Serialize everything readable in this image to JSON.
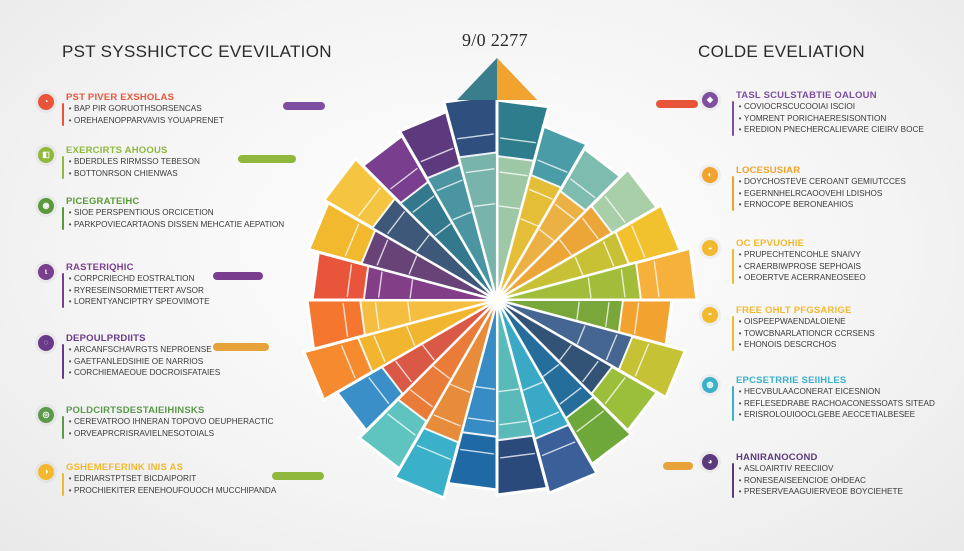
{
  "header": {
    "left_title": "PST SYSSHICTCC EVEVILATION",
    "center_title": "9/0 2277",
    "right_title": "COLDE  EVELIATION"
  },
  "left_items": [
    {
      "head": "PST PIVER EXSHOLAS",
      "lines": [
        "BAP PIR GORUOTHSORSENCAS",
        "OREHAENOPPARVAVIS YOUAPRENET"
      ],
      "color": "#e8553b",
      "tag": "",
      "tag_color": "#7e4fa0",
      "icon": "◔"
    },
    {
      "head": "EXERCIRTS AHOOUS",
      "lines": [
        "BDERDLES RIRMSSO TEBESON",
        "BOTTONRSON CHIENWAS"
      ],
      "color": "#8fb83c",
      "tag": "",
      "tag_color": "#8fb83c",
      "icon": "◧"
    },
    {
      "head": "PICEGRATEIHC",
      "lines": [
        "SIOE PERSPENTIOUS ORCICETION",
        "PARKPOVIECARTAONS DISSEN MEHCATIE AEPATION"
      ],
      "color": "#5a9a3a",
      "tag": "",
      "tag_color": "",
      "icon": "◉"
    },
    {
      "head": "RASTERIQHIC",
      "lines": [
        "CORPCRIECHD EOSTRALTION",
        "RYRESEINSORMIETTERT AVSOR",
        "LORENTYANCIPTRY SPEOVIMOTE"
      ],
      "color": "#7a3e8e",
      "tag": "",
      "tag_color": "#7a3e8e",
      "icon": "ɩ"
    },
    {
      "head": "DEPOULPRDIITS",
      "lines": [
        "ARCANFSCHAVRGTS NEPROENSE",
        "GAETFANLEDSIHIE OE NARRIOS",
        "CORCHIEMAEOUE  DOCROISFATAIES"
      ],
      "color": "#6a3a8a",
      "tag": "",
      "tag_color": "#e8a23a",
      "icon": "◌"
    },
    {
      "head": "POLDCIRTSDESTAIEIHINSKS",
      "lines": [
        "CEREVATROO IHNERAN TOPOVO OEUPHERACTIC",
        "ORVEAPRCRISRAVIELNESOTOIALS"
      ],
      "color": "#5a9a4a",
      "tag": "",
      "tag_color": "",
      "icon": "◎"
    },
    {
      "head": "GSHEMEFERINK INIS AS",
      "lines": [
        "EDRIARSTPTSET BICDAIPORIT",
        "PROCHIEKITER EENEHOUFOUOCH MUCCHIPANDA"
      ],
      "color": "#f2b92e",
      "tag": "",
      "tag_color": "#8fb83c",
      "icon": "◑"
    }
  ],
  "right_items": [
    {
      "head": "TASL SCULSTABTIE OALOUN",
      "lines": [
        "COVIOCRSCUCOOIAI ISCIOI",
        "YOMRENT PORICHAERESISONTION",
        "EREDION PNECHERCALIEVARE CIEIRV BOCE"
      ],
      "color": "#7e4fa0",
      "tag": "",
      "tag_color": "#e8553b",
      "icon": "◆"
    },
    {
      "head": "LOCESUSIAR",
      "lines": [
        "DOYCHOSTEVE CEROANT GEMIUTCCES",
        "EGERNNHELRCAOOVEHI LDISHOS",
        "ERNOCOPE BERONEAHIOS"
      ],
      "color": "#f2a22e",
      "tag": "",
      "tag_color": "",
      "icon": "◐"
    },
    {
      "head": "OC EPVUOHIE",
      "lines": [
        "PRUPECHTENCOHLE SNAIVY",
        "CRAERBIWPROSE SEPHOAIS",
        "OEOERTVE ACERRANEOSEEO"
      ],
      "color": "#f2b92e",
      "tag": "",
      "tag_color": "",
      "icon": "◒"
    },
    {
      "head": "FREE  OHLT PFGSARIGE",
      "lines": [
        "OISPEEPWAENDALOIENE",
        "TOWCBNARLATIONCR CCRSENS",
        "EHONOIS DESCRCHOS"
      ],
      "color": "#f2b92e",
      "tag": "",
      "tag_color": "",
      "icon": "◓"
    },
    {
      "head": "EPCSETRRIE SEIIHLES",
      "lines": [
        "HECVBULAACONERAT EICESNION",
        "REFLESEDRABE RACHOACONESSOATS SITEAD",
        "ERISROLOUIOOCLGEBE AECCETIALBESEE"
      ],
      "color": "#3bb0c9",
      "tag": "",
      "tag_color": "",
      "icon": "◍"
    },
    {
      "head": "HANIRANOCOND",
      "lines": [
        "ASLOAIRTIV REECIIOV",
        "RONESEAISEENCIOE OHDEAC",
        "PRESERVEAAGUIERVEOE BOYCIEHETE"
      ],
      "color": "#5a3a7a",
      "tag": "",
      "tag_color": "#e8a23a",
      "icon": "◕"
    }
  ],
  "wheel": {
    "colors": [
      "#2e7d8c",
      "#4a9ca6",
      "#7fbcb0",
      "#a8cfa8",
      "#f2c12e",
      "#f5b13b",
      "#f2a22e",
      "#c6c236",
      "#9bbf3a",
      "#6fa83a",
      "#3a5f99",
      "#2b4a7c",
      "#1f6aa5",
      "#3bb0c9",
      "#5fc4c0",
      "#3a8fc9",
      "#f58a2e",
      "#f5762e",
      "#e8553b",
      "#f2b92e",
      "#f5c542",
      "#7a3e8e",
      "#5d3a7e",
      "#2f4f7f"
    ]
  }
}
